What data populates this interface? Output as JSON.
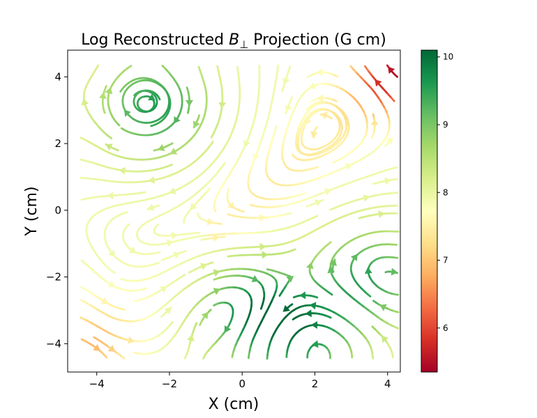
{
  "chart_data": {
    "type": "streamplot",
    "title": "Log Reconstructed B⊥ Projection (G cm)",
    "title_main": "Log Reconstructed ",
    "title_symbol": "B",
    "title_subscript": "⊥",
    "title_rest": " Projection (G cm)",
    "xlabel": "X (cm)",
    "ylabel": "Y (cm)",
    "xlim": [
      -4.8,
      4.35
    ],
    "ylim": [
      -4.85,
      4.8
    ],
    "xticks": [
      {
        "value": -4,
        "label": "−4"
      },
      {
        "value": -2,
        "label": "−2"
      },
      {
        "value": 0,
        "label": "0"
      },
      {
        "value": 2,
        "label": "2"
      },
      {
        "value": 4,
        "label": "4"
      }
    ],
    "yticks": [
      {
        "value": -4,
        "label": "−4"
      },
      {
        "value": -2,
        "label": "−2"
      },
      {
        "value": 0,
        "label": "0"
      },
      {
        "value": 2,
        "label": "2"
      },
      {
        "value": 4,
        "label": "4"
      }
    ],
    "colorbar": {
      "colormap": "RdYlGn",
      "range": [
        5.35,
        10.1
      ],
      "ticks": [
        {
          "value": 6,
          "label": "6"
        },
        {
          "value": 7,
          "label": "7"
        },
        {
          "value": 8,
          "label": "8"
        },
        {
          "value": 9,
          "label": "9"
        },
        {
          "value": 10,
          "label": "10"
        }
      ],
      "stops": [
        "#a50026",
        "#d73027",
        "#f46d43",
        "#fdae61",
        "#fee08b",
        "#ffffbf",
        "#d9ef8b",
        "#a6d96a",
        "#66bd63",
        "#1a9850",
        "#006837"
      ]
    },
    "features": [
      {
        "kind": "vortex",
        "center": [
          -2.4,
          3.1
        ],
        "strength": 9.6
      },
      {
        "kind": "vortex",
        "center": [
          0.3,
          -3.0
        ],
        "strength": 9.7
      },
      {
        "kind": "vortex",
        "center": [
          3.5,
          -2.0
        ],
        "strength": 9.4
      },
      {
        "kind": "vortex",
        "center": [
          1.8,
          -3.7
        ],
        "strength": 9.3
      },
      {
        "kind": "low-field-corner",
        "center": [
          4.2,
          4.0
        ],
        "strength": 6.0
      },
      {
        "kind": "low-field-corner",
        "center": [
          -4.1,
          -3.9
        ],
        "strength": 7.0
      }
    ]
  }
}
